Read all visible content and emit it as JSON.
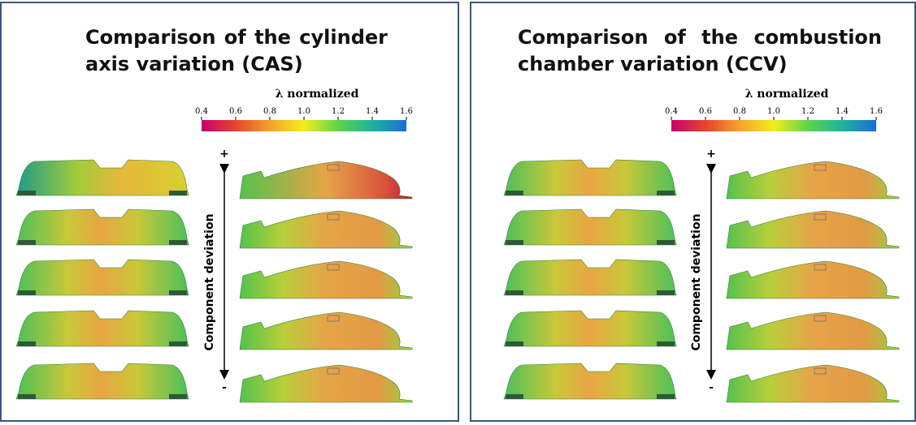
{
  "panels": [
    {
      "title": "Comparison of the  cylinder axis variation (CAS)",
      "colorbar_label": "λ normalized",
      "colorbar_ticks": [
        "0.4",
        "0.6",
        "0.8",
        "1.0",
        "1.2",
        "1.4",
        "1.6"
      ],
      "axis_label": "Component deviation",
      "plus": "+",
      "minus": "-"
    },
    {
      "title": "Comparison of the combustion chamber variation (CCV)",
      "colorbar_label": "λ normalized",
      "colorbar_ticks": [
        "0.4",
        "0.6",
        "0.8",
        "1.0",
        "1.2",
        "1.4",
        "1.6"
      ],
      "axis_label": "Component deviation",
      "plus": "+",
      "minus": "-"
    }
  ]
}
